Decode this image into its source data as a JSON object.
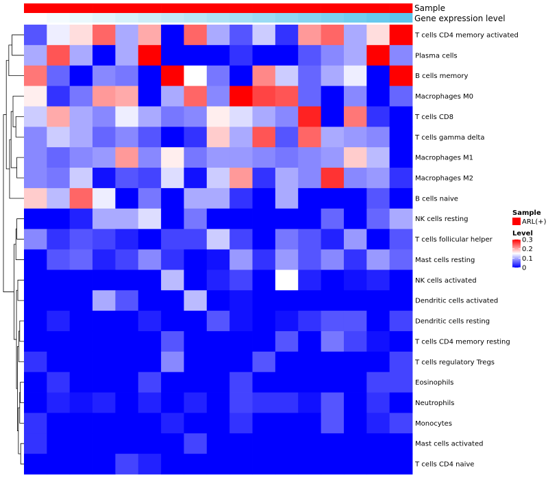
{
  "chart_data": {
    "type": "heatmap",
    "annotations": {
      "sample_label": "Sample",
      "expression_label": "Gene expression level",
      "sample_color": "#ff0000",
      "expression_values": [
        0.0,
        0.06,
        0.12,
        0.18,
        0.24,
        0.3,
        0.36,
        0.42,
        0.48,
        0.54,
        0.6,
        0.66,
        0.72,
        0.78,
        0.84,
        0.9,
        0.96,
        1.0
      ]
    },
    "expression_colors": {
      "low": "#ffffff",
      "high": "#56c3ec"
    },
    "row_labels": [
      "T cells CD4 memory activated",
      "Plasma cells",
      "B cells memory",
      "Macrophages M0",
      "T cells CD8",
      "T cells gamma delta",
      "Macrophages M1",
      "Macrophages M2",
      "B cells naive",
      "NK cells resting",
      "T cells follicular helper",
      "Mast cells resting",
      "NK cells activated",
      "Dendritic cells activated",
      "Dendritic cells resting",
      "T cells CD4 memory resting",
      "T cells regulatory  Tregs",
      "Eosinophils",
      "Neutrophils",
      "Monocytes",
      "Mast cells activated",
      "T cells CD4 naive"
    ],
    "values": [
      [
        0.05,
        0.14,
        0.17,
        0.24,
        0.1,
        0.2,
        0.0,
        0.24,
        0.1,
        0.05,
        0.12,
        0.03,
        0.21,
        0.24,
        0.1,
        0.17,
        0.3
      ],
      [
        0.1,
        0.25,
        0.1,
        0.0,
        0.1,
        0.3,
        0.0,
        0.0,
        0.0,
        0.03,
        0.0,
        0.0,
        0.05,
        0.08,
        0.1,
        0.3,
        0.08
      ],
      [
        0.23,
        0.06,
        0.0,
        0.08,
        0.07,
        0.0,
        0.3,
        0.15,
        0.07,
        0.0,
        0.22,
        0.12,
        0.06,
        0.1,
        0.14,
        0.0,
        0.3
      ],
      [
        0.16,
        0.03,
        0.07,
        0.21,
        0.2,
        0.0,
        0.1,
        0.24,
        0.08,
        0.3,
        0.26,
        0.25,
        0.06,
        0.0,
        0.08,
        0.0,
        0.06
      ],
      [
        0.12,
        0.2,
        0.1,
        0.08,
        0.14,
        0.1,
        0.07,
        0.08,
        0.16,
        0.13,
        0.1,
        0.08,
        0.28,
        0.0,
        0.23,
        0.03,
        0.0
      ],
      [
        0.08,
        0.12,
        0.1,
        0.06,
        0.08,
        0.05,
        0.0,
        0.03,
        0.18,
        0.1,
        0.25,
        0.05,
        0.24,
        0.1,
        0.09,
        0.08,
        0.0
      ],
      [
        0.08,
        0.06,
        0.08,
        0.09,
        0.21,
        0.08,
        0.16,
        0.07,
        0.09,
        0.09,
        0.08,
        0.07,
        0.08,
        0.09,
        0.18,
        0.11,
        0.0
      ],
      [
        0.08,
        0.07,
        0.12,
        0.01,
        0.05,
        0.04,
        0.13,
        0.01,
        0.12,
        0.21,
        0.03,
        0.1,
        0.08,
        0.27,
        0.08,
        0.09,
        0.03
      ],
      [
        0.18,
        0.11,
        0.24,
        0.14,
        0.0,
        0.07,
        0.0,
        0.1,
        0.1,
        0.03,
        0.0,
        0.1,
        0.0,
        0.0,
        0.0,
        0.05,
        0.0
      ],
      [
        0.0,
        0.0,
        0.02,
        0.1,
        0.1,
        0.13,
        0.0,
        0.07,
        0.0,
        0.0,
        0.0,
        0.0,
        0.0,
        0.06,
        0.0,
        0.06,
        0.1
      ],
      [
        0.08,
        0.03,
        0.05,
        0.04,
        0.02,
        0.0,
        0.04,
        0.04,
        0.12,
        0.04,
        0.0,
        0.07,
        0.05,
        0.02,
        0.09,
        0.0,
        0.05
      ],
      [
        0.0,
        0.05,
        0.06,
        0.02,
        0.04,
        0.08,
        0.03,
        0.0,
        0.01,
        0.09,
        0.03,
        0.09,
        0.05,
        0.08,
        0.03,
        0.09,
        0.06
      ],
      [
        0.0,
        0.0,
        0.0,
        0.0,
        0.0,
        0.0,
        0.11,
        0.0,
        0.02,
        0.04,
        0.0,
        0.15,
        0.02,
        0.0,
        0.01,
        0.02,
        0.0
      ],
      [
        0.0,
        0.0,
        0.0,
        0.1,
        0.05,
        0.0,
        0.0,
        0.11,
        0.0,
        0.01,
        0.0,
        0.0,
        0.0,
        0.0,
        0.0,
        0.0,
        0.0
      ],
      [
        0.0,
        0.02,
        0.0,
        0.0,
        0.0,
        0.02,
        0.0,
        0.0,
        0.05,
        0.01,
        0.0,
        0.01,
        0.03,
        0.05,
        0.05,
        0.0,
        0.04
      ],
      [
        0.0,
        0.0,
        0.0,
        0.0,
        0.0,
        0.0,
        0.05,
        0.0,
        0.0,
        0.0,
        0.0,
        0.05,
        0.0,
        0.07,
        0.04,
        0.01,
        0.0
      ],
      [
        0.03,
        0.0,
        0.0,
        0.0,
        0.0,
        0.0,
        0.08,
        0.0,
        0.0,
        0.0,
        0.05,
        0.0,
        0.0,
        0.0,
        0.0,
        0.0,
        0.04
      ],
      [
        0.0,
        0.03,
        0.0,
        0.0,
        0.0,
        0.04,
        0.0,
        0.0,
        0.0,
        0.04,
        0.0,
        0.0,
        0.0,
        0.0,
        0.0,
        0.04,
        0.04
      ],
      [
        0.0,
        0.02,
        0.01,
        0.02,
        0.0,
        0.02,
        0.0,
        0.02,
        0.0,
        0.04,
        0.03,
        0.03,
        0.01,
        0.05,
        0.0,
        0.03,
        0.0
      ],
      [
        0.03,
        0.0,
        0.0,
        0.0,
        0.0,
        0.0,
        0.02,
        0.0,
        0.0,
        0.03,
        0.0,
        0.0,
        0.0,
        0.05,
        0.0,
        0.02,
        0.04
      ],
      [
        0.03,
        0.0,
        0.0,
        0.0,
        0.0,
        0.0,
        0.0,
        0.04,
        0.0,
        0.0,
        0.0,
        0.0,
        0.0,
        0.0,
        0.0,
        0.0,
        0.0
      ],
      [
        0.0,
        0.0,
        0.0,
        0.0,
        0.04,
        0.02,
        0.0,
        0.0,
        0.0,
        0.0,
        0.0,
        0.0,
        0.0,
        0.0,
        0.0,
        0.0,
        0.0
      ]
    ],
    "color_scale": {
      "min": 0,
      "mid": 0.15,
      "max": 0.3,
      "low": "#0000ff",
      "mid_color": "#ffffff",
      "high": "#ff0000"
    },
    "legend": {
      "sample_title": "Sample",
      "sample_item": "ARL(+)",
      "level_title": "Level",
      "ticks": [
        {
          "value": 0.3,
          "label": "0.3"
        },
        {
          "value": 0.2,
          "label": "0.2"
        },
        {
          "value": 0.1,
          "label": "0.1"
        },
        {
          "value": 0,
          "label": "0"
        }
      ],
      "placement": "right"
    }
  }
}
